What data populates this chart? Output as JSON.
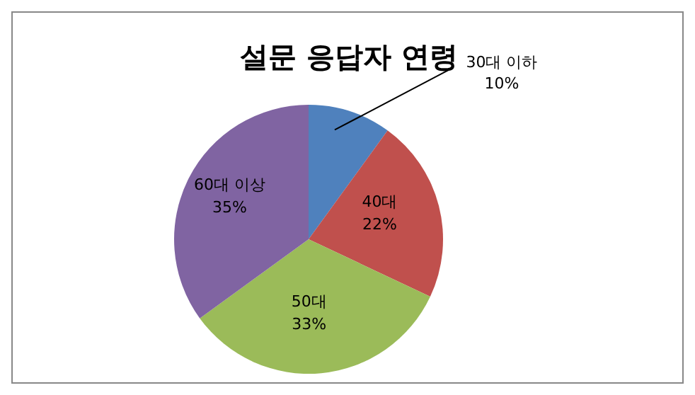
{
  "chart_data": {
    "type": "pie",
    "title": "설문 응답자 연령",
    "categories": [
      "30대 이하",
      "40대",
      "50대",
      "60대 이상"
    ],
    "values": [
      10,
      22,
      33,
      35
    ],
    "value_labels": [
      "10%",
      "22%",
      "33%",
      "35%"
    ],
    "colors": [
      "#4f81bd",
      "#c0504d",
      "#9bbb59",
      "#8064a2"
    ],
    "legend": false
  }
}
